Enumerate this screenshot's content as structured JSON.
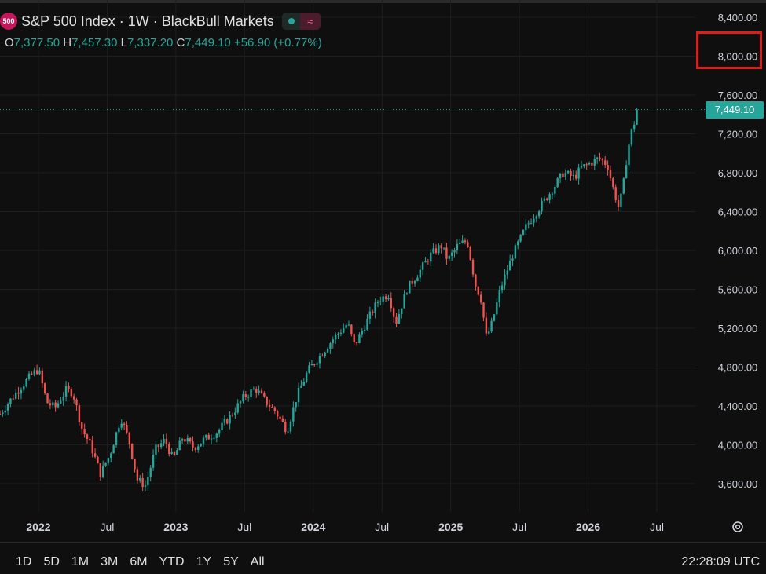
{
  "header": {
    "symbol_badge": "500",
    "title": "S&P 500 Index · 1W · BlackBull Markets",
    "open_key": "O",
    "open": "7,377.50",
    "high_key": "H",
    "high": "7,457.30",
    "low_key": "L",
    "low": "7,337.20",
    "close_key": "C",
    "close": "7,449.10",
    "change": "+56.90 (+0.77%)",
    "status_icon": "green-dot-icon",
    "indicator_icon": "wave-icon"
  },
  "price_tag": "7,449.10",
  "colors": {
    "up": "#26a69a",
    "down": "#ef5350",
    "grid": "#1e1e1e",
    "highlight": "#e01b1b"
  },
  "chart_data": {
    "type": "candlestick",
    "title": "S&P 500 Index · 1W · BlackBull Markets",
    "x_range": [
      2021.72,
      2026.78
    ],
    "ylim": [
      3400,
      8500
    ],
    "y_ticks": [
      3600,
      4000,
      4400,
      4800,
      5200,
      5600,
      6000,
      6400,
      6800,
      7200,
      7600,
      8000,
      8400
    ],
    "y_tick_labels": [
      "3,600.00",
      "4,000.00",
      "4,400.00",
      "4,800.00",
      "5,200.00",
      "5,600.00",
      "6,000.00",
      "6,400.00",
      "6,800.00",
      "7,200.00",
      "7,600.00",
      "8,000.00",
      "8,400.00"
    ],
    "x_ticks": [
      {
        "t": 2022.0,
        "label": "2022"
      },
      {
        "t": 2022.5,
        "label": "Jul"
      },
      {
        "t": 2023.0,
        "label": "2023"
      },
      {
        "t": 2023.5,
        "label": "Jul"
      },
      {
        "t": 2024.0,
        "label": "2024"
      },
      {
        "t": 2024.5,
        "label": "Jul"
      },
      {
        "t": 2025.0,
        "label": "2025"
      },
      {
        "t": 2025.5,
        "label": "Jul"
      },
      {
        "t": 2026.0,
        "label": "2026"
      },
      {
        "t": 2026.5,
        "label": "Jul"
      }
    ],
    "last_price": 7449.1,
    "grid": true,
    "path": [
      [
        2021.72,
        4320
      ],
      [
        2021.85,
        4560
      ],
      [
        2021.95,
        4720
      ],
      [
        2022.0,
        4780
      ],
      [
        2022.06,
        4440
      ],
      [
        2022.12,
        4380
      ],
      [
        2022.2,
        4560
      ],
      [
        2022.25,
        4540
      ],
      [
        2022.32,
        4150
      ],
      [
        2022.38,
        4000
      ],
      [
        2022.45,
        3700
      ],
      [
        2022.52,
        3900
      ],
      [
        2022.6,
        4280
      ],
      [
        2022.66,
        4040
      ],
      [
        2022.72,
        3640
      ],
      [
        2022.78,
        3580
      ],
      [
        2022.85,
        3950
      ],
      [
        2022.92,
        4050
      ],
      [
        2022.98,
        3850
      ],
      [
        2023.05,
        4080
      ],
      [
        2023.13,
        3970
      ],
      [
        2023.2,
        4050
      ],
      [
        2023.3,
        4130
      ],
      [
        2023.4,
        4300
      ],
      [
        2023.5,
        4500
      ],
      [
        2023.58,
        4580
      ],
      [
        2023.65,
        4450
      ],
      [
        2023.72,
        4350
      ],
      [
        2023.81,
        4150
      ],
      [
        2023.88,
        4500
      ],
      [
        2023.96,
        4760
      ],
      [
        2024.05,
        4920
      ],
      [
        2024.15,
        5100
      ],
      [
        2024.25,
        5250
      ],
      [
        2024.3,
        5020
      ],
      [
        2024.4,
        5300
      ],
      [
        2024.48,
        5500
      ],
      [
        2024.55,
        5550
      ],
      [
        2024.6,
        5250
      ],
      [
        2024.68,
        5600
      ],
      [
        2024.78,
        5800
      ],
      [
        2024.85,
        5950
      ],
      [
        2024.93,
        6050
      ],
      [
        2024.98,
        5900
      ],
      [
        2025.05,
        6050
      ],
      [
        2025.12,
        6100
      ],
      [
        2025.18,
        5650
      ],
      [
        2025.22,
        5500
      ],
      [
        2025.26,
        5100
      ],
      [
        2025.3,
        5250
      ],
      [
        2025.36,
        5600
      ],
      [
        2025.45,
        5950
      ],
      [
        2025.55,
        6250
      ],
      [
        2025.65,
        6450
      ],
      [
        2025.75,
        6650
      ],
      [
        2025.82,
        6800
      ],
      [
        2025.9,
        6750
      ],
      [
        2025.95,
        6850
      ],
      [
        2026.02,
        6900
      ],
      [
        2026.08,
        6950
      ],
      [
        2026.14,
        6880
      ],
      [
        2026.18,
        6650
      ],
      [
        2026.22,
        6450
      ],
      [
        2026.25,
        6600
      ],
      [
        2026.28,
        6950
      ],
      [
        2026.31,
        7200
      ],
      [
        2026.35,
        7380
      ],
      [
        2026.37,
        7449
      ]
    ]
  },
  "ranges": [
    "1D",
    "5D",
    "1M",
    "3M",
    "6M",
    "YTD",
    "1Y",
    "5Y",
    "All"
  ],
  "clock": "22:28:09 UTC",
  "settings_icon": "gear-icon"
}
